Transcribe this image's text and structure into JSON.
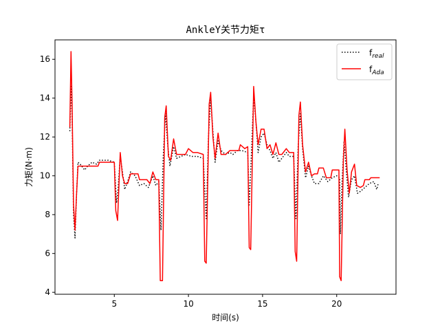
{
  "chart_data": {
    "type": "line",
    "title": "AnkleY关节力矩τ",
    "xlabel": "时间(s)",
    "ylabel": "力矩(N·m)",
    "xlim": [
      1.0,
      24.0
    ],
    "ylim": [
      3.9,
      17.0
    ],
    "xticks": [
      5,
      10,
      15,
      20
    ],
    "yticks": [
      4,
      6,
      8,
      10,
      12,
      14,
      16
    ],
    "grid": false,
    "legend_position": "top-right",
    "series": [
      {
        "name": "f_real",
        "legend_main": "f",
        "legend_sub": "real",
        "color": "#000000",
        "style": "dotted",
        "points": [
          [
            2.0,
            12.3
          ],
          [
            2.08,
            14.6
          ],
          [
            2.15,
            13.2
          ],
          [
            2.25,
            8.0
          ],
          [
            2.35,
            6.8
          ],
          [
            2.45,
            9.0
          ],
          [
            2.55,
            10.7
          ],
          [
            2.7,
            10.6
          ],
          [
            3.0,
            10.3
          ],
          [
            3.2,
            10.5
          ],
          [
            3.5,
            10.7
          ],
          [
            3.8,
            10.6
          ],
          [
            4.0,
            10.8
          ],
          [
            4.3,
            10.8
          ],
          [
            4.6,
            10.8
          ],
          [
            5.0,
            10.7
          ],
          [
            5.15,
            8.6
          ],
          [
            5.25,
            9.3
          ],
          [
            5.4,
            11.0
          ],
          [
            5.55,
            10.2
          ],
          [
            5.7,
            9.3
          ],
          [
            5.9,
            9.7
          ],
          [
            6.1,
            10.2
          ],
          [
            6.4,
            10.0
          ],
          [
            6.7,
            9.5
          ],
          [
            7.0,
            9.6
          ],
          [
            7.3,
            9.4
          ],
          [
            7.6,
            10.0
          ],
          [
            7.8,
            9.5
          ],
          [
            8.0,
            9.7
          ],
          [
            8.15,
            7.2
          ],
          [
            8.3,
            11.0
          ],
          [
            8.45,
            13.2
          ],
          [
            8.6,
            11.6
          ],
          [
            8.75,
            10.5
          ],
          [
            9.0,
            11.5
          ],
          [
            9.2,
            10.9
          ],
          [
            9.5,
            11.0
          ],
          [
            9.8,
            11.1
          ],
          [
            10.2,
            11.0
          ],
          [
            10.6,
            11.0
          ],
          [
            11.0,
            10.9
          ],
          [
            11.2,
            7.8
          ],
          [
            11.35,
            12.0
          ],
          [
            11.5,
            14.0
          ],
          [
            11.65,
            12.3
          ],
          [
            11.8,
            10.7
          ],
          [
            12.0,
            11.8
          ],
          [
            12.2,
            11.3
          ],
          [
            12.5,
            11.1
          ],
          [
            12.8,
            11.2
          ],
          [
            13.0,
            11.1
          ],
          [
            13.3,
            11.3
          ],
          [
            13.6,
            11.3
          ],
          [
            14.0,
            11.2
          ],
          [
            14.1,
            8.5
          ],
          [
            14.25,
            11.2
          ],
          [
            14.4,
            14.1
          ],
          [
            14.55,
            12.8
          ],
          [
            14.7,
            11.2
          ],
          [
            14.9,
            12.0
          ],
          [
            15.1,
            12.2
          ],
          [
            15.3,
            11.6
          ],
          [
            15.5,
            11.3
          ],
          [
            15.7,
            10.9
          ],
          [
            15.9,
            11.2
          ],
          [
            16.1,
            10.7
          ],
          [
            16.3,
            10.9
          ],
          [
            16.6,
            11.2
          ],
          [
            16.8,
            11.0
          ],
          [
            17.1,
            11.0
          ],
          [
            17.25,
            7.8
          ],
          [
            17.4,
            11.5
          ],
          [
            17.55,
            13.2
          ],
          [
            17.7,
            11.4
          ],
          [
            17.9,
            9.9
          ],
          [
            18.1,
            10.5
          ],
          [
            18.3,
            10.0
          ],
          [
            18.5,
            9.6
          ],
          [
            18.8,
            9.6
          ],
          [
            19.1,
            10.0
          ],
          [
            19.4,
            9.7
          ],
          [
            19.7,
            9.9
          ],
          [
            20.0,
            10.0
          ],
          [
            20.2,
            9.9
          ],
          [
            20.25,
            7.0
          ],
          [
            20.35,
            9.5
          ],
          [
            20.5,
            11.8
          ],
          [
            20.65,
            10.2
          ],
          [
            20.8,
            8.9
          ],
          [
            21.0,
            9.8
          ],
          [
            21.2,
            10.0
          ],
          [
            21.4,
            9.1
          ],
          [
            21.6,
            9.2
          ],
          [
            21.9,
            9.4
          ],
          [
            22.2,
            9.6
          ],
          [
            22.5,
            9.7
          ],
          [
            22.7,
            9.3
          ],
          [
            22.8,
            9.6
          ]
        ]
      },
      {
        "name": "f_Ada",
        "legend_main": "f",
        "legend_sub": "Ada",
        "color": "#ff0000",
        "style": "solid",
        "points": [
          [
            2.0,
            12.5
          ],
          [
            2.08,
            16.4
          ],
          [
            2.15,
            13.8
          ],
          [
            2.25,
            8.5
          ],
          [
            2.35,
            7.2
          ],
          [
            2.45,
            9.0
          ],
          [
            2.55,
            10.5
          ],
          [
            2.7,
            10.5
          ],
          [
            3.0,
            10.5
          ],
          [
            3.5,
            10.5
          ],
          [
            3.9,
            10.5
          ],
          [
            4.0,
            10.7
          ],
          [
            4.5,
            10.7
          ],
          [
            5.0,
            10.7
          ],
          [
            5.1,
            8.2
          ],
          [
            5.22,
            7.7
          ],
          [
            5.4,
            11.2
          ],
          [
            5.55,
            10.0
          ],
          [
            5.7,
            9.6
          ],
          [
            5.9,
            9.6
          ],
          [
            6.1,
            10.1
          ],
          [
            6.6,
            10.1
          ],
          [
            6.7,
            9.8
          ],
          [
            7.2,
            9.8
          ],
          [
            7.4,
            9.6
          ],
          [
            7.6,
            10.2
          ],
          [
            7.8,
            9.8
          ],
          [
            8.0,
            9.8
          ],
          [
            8.1,
            4.6
          ],
          [
            8.25,
            4.6
          ],
          [
            8.4,
            13.0
          ],
          [
            8.5,
            13.6
          ],
          [
            8.65,
            11.0
          ],
          [
            8.8,
            10.8
          ],
          [
            9.0,
            11.9
          ],
          [
            9.2,
            11.1
          ],
          [
            9.5,
            11.1
          ],
          [
            9.8,
            11.1
          ],
          [
            10.0,
            11.4
          ],
          [
            10.3,
            11.2
          ],
          [
            10.6,
            11.2
          ],
          [
            11.0,
            11.1
          ],
          [
            11.1,
            5.6
          ],
          [
            11.2,
            5.5
          ],
          [
            11.4,
            13.7
          ],
          [
            11.5,
            14.3
          ],
          [
            11.65,
            12.0
          ],
          [
            11.8,
            10.9
          ],
          [
            12.0,
            12.2
          ],
          [
            12.2,
            11.1
          ],
          [
            12.5,
            11.1
          ],
          [
            12.8,
            11.3
          ],
          [
            13.0,
            11.3
          ],
          [
            13.4,
            11.3
          ],
          [
            13.5,
            11.6
          ],
          [
            13.8,
            11.4
          ],
          [
            14.0,
            11.5
          ],
          [
            14.1,
            6.3
          ],
          [
            14.2,
            6.2
          ],
          [
            14.4,
            14.6
          ],
          [
            14.55,
            12.8
          ],
          [
            14.7,
            11.6
          ],
          [
            14.9,
            12.4
          ],
          [
            15.1,
            12.4
          ],
          [
            15.3,
            11.4
          ],
          [
            15.5,
            11.6
          ],
          [
            15.7,
            11.1
          ],
          [
            15.9,
            11.7
          ],
          [
            16.1,
            11.1
          ],
          [
            16.3,
            11.1
          ],
          [
            16.6,
            11.4
          ],
          [
            16.8,
            11.2
          ],
          [
            17.1,
            11.2
          ],
          [
            17.2,
            6.1
          ],
          [
            17.3,
            5.6
          ],
          [
            17.45,
            13.1
          ],
          [
            17.55,
            13.8
          ],
          [
            17.7,
            11.6
          ],
          [
            17.9,
            10.2
          ],
          [
            18.1,
            10.7
          ],
          [
            18.3,
            10.0
          ],
          [
            18.5,
            10.1
          ],
          [
            18.7,
            10.1
          ],
          [
            18.8,
            10.4
          ],
          [
            19.1,
            10.4
          ],
          [
            19.3,
            9.9
          ],
          [
            19.6,
            9.9
          ],
          [
            19.7,
            10.3
          ],
          [
            20.0,
            10.3
          ],
          [
            20.15,
            10.3
          ],
          [
            20.2,
            4.8
          ],
          [
            20.3,
            4.6
          ],
          [
            20.45,
            10.8
          ],
          [
            20.55,
            12.4
          ],
          [
            20.7,
            10.3
          ],
          [
            20.85,
            9.1
          ],
          [
            21.0,
            10.2
          ],
          [
            21.2,
            10.6
          ],
          [
            21.35,
            9.5
          ],
          [
            21.6,
            9.4
          ],
          [
            21.8,
            9.5
          ],
          [
            21.9,
            9.8
          ],
          [
            22.2,
            9.8
          ],
          [
            22.3,
            9.9
          ],
          [
            22.6,
            9.9
          ],
          [
            22.9,
            9.9
          ]
        ]
      }
    ]
  }
}
